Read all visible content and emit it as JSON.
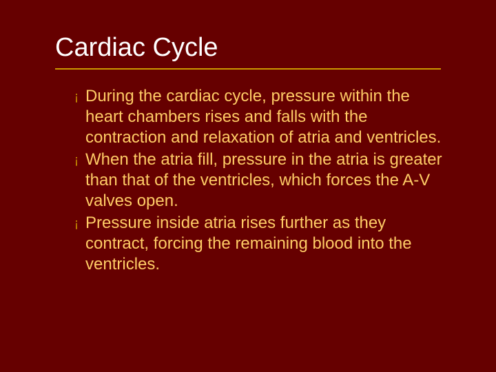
{
  "slide": {
    "title": "Cardiac Cycle",
    "background_color": "#660000",
    "title_color": "#ffffff",
    "title_fontsize": 38,
    "underline_color": "#cc9900",
    "bullet_marker": "¡",
    "bullet_color": "#cc9900",
    "body_text_color": "#ffcc66",
    "body_fontsize": 24,
    "body_lineheight": 30,
    "bullets": [
      "During the cardiac cycle, pressure within the heart chambers rises and falls with the contraction and relaxation of atria and ventricles.",
      "When the atria fill, pressure in the atria is greater than that of the ventricles, which forces the A-V valves open.",
      "Pressure inside atria rises further as they contract, forcing the remaining blood into the ventricles."
    ]
  }
}
